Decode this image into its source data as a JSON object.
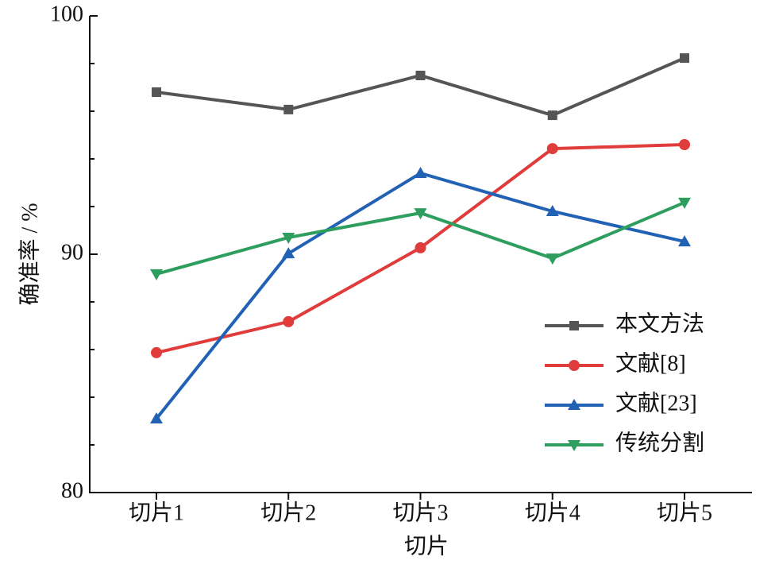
{
  "chart_data": {
    "type": "line",
    "x_label": "切片",
    "y_label": "确准率 / %",
    "categories": [
      "切片1",
      "切片2",
      "切片3",
      "切片4",
      "切片5"
    ],
    "series": [
      {
        "name": "本文方法",
        "color": "#555555",
        "marker": "square",
        "values": [
          96.8,
          96.07,
          97.5,
          95.83,
          98.23
        ]
      },
      {
        "name": "文献[8]",
        "color": "#e03c3c",
        "marker": "circle",
        "values": [
          85.87,
          87.17,
          90.27,
          94.43,
          94.6
        ]
      },
      {
        "name": "文献[23]",
        "color": "#2262b4",
        "marker": "triangle-up",
        "values": [
          83.1,
          90.03,
          93.4,
          91.8,
          90.53
        ]
      },
      {
        "name": "传统分割",
        "color": "#2e9e5e",
        "marker": "triangle-down",
        "values": [
          89.17,
          90.7,
          91.73,
          89.83,
          92.17
        ]
      }
    ],
    "ylim": [
      80,
      100
    ],
    "yticks": [
      80,
      90,
      100
    ],
    "yminorticks": [
      82,
      84,
      86,
      88,
      92,
      94,
      96,
      98
    ],
    "legend": "lower right"
  }
}
